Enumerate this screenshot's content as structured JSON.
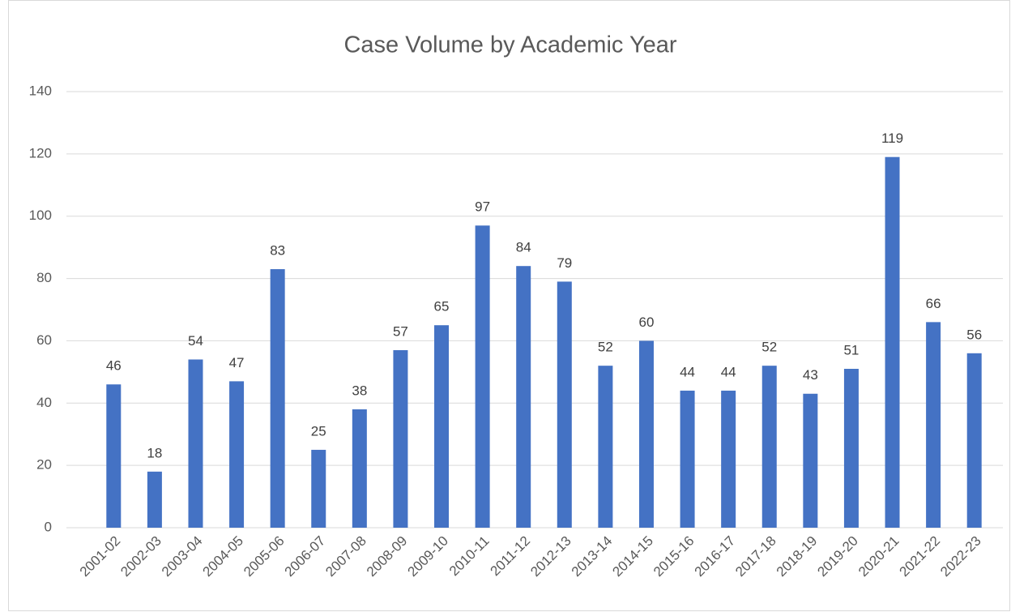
{
  "chart_data": {
    "type": "bar",
    "title": "Case Volume by Academic Year",
    "categories": [
      "2001-02",
      "2002-03",
      "2003-04",
      "2004-05",
      "2005-06",
      "2006-07",
      "2007-08",
      "2008-09",
      "2009-10",
      "2010-11",
      "2011-12",
      "2012-13",
      "2013-14",
      "2014-15",
      "2015-16",
      "2016-17",
      "2017-18",
      "2018-19",
      "2019-20",
      "2020-21",
      "2021-22",
      "2022-23"
    ],
    "values": [
      46,
      18,
      54,
      47,
      83,
      25,
      38,
      57,
      65,
      97,
      84,
      79,
      52,
      60,
      44,
      44,
      52,
      43,
      51,
      119,
      66,
      56
    ],
    "color": "#4472c4",
    "ylim": [
      0,
      140
    ],
    "yticks": [
      0,
      20,
      40,
      60,
      80,
      100,
      120,
      140
    ],
    "grid": true
  }
}
